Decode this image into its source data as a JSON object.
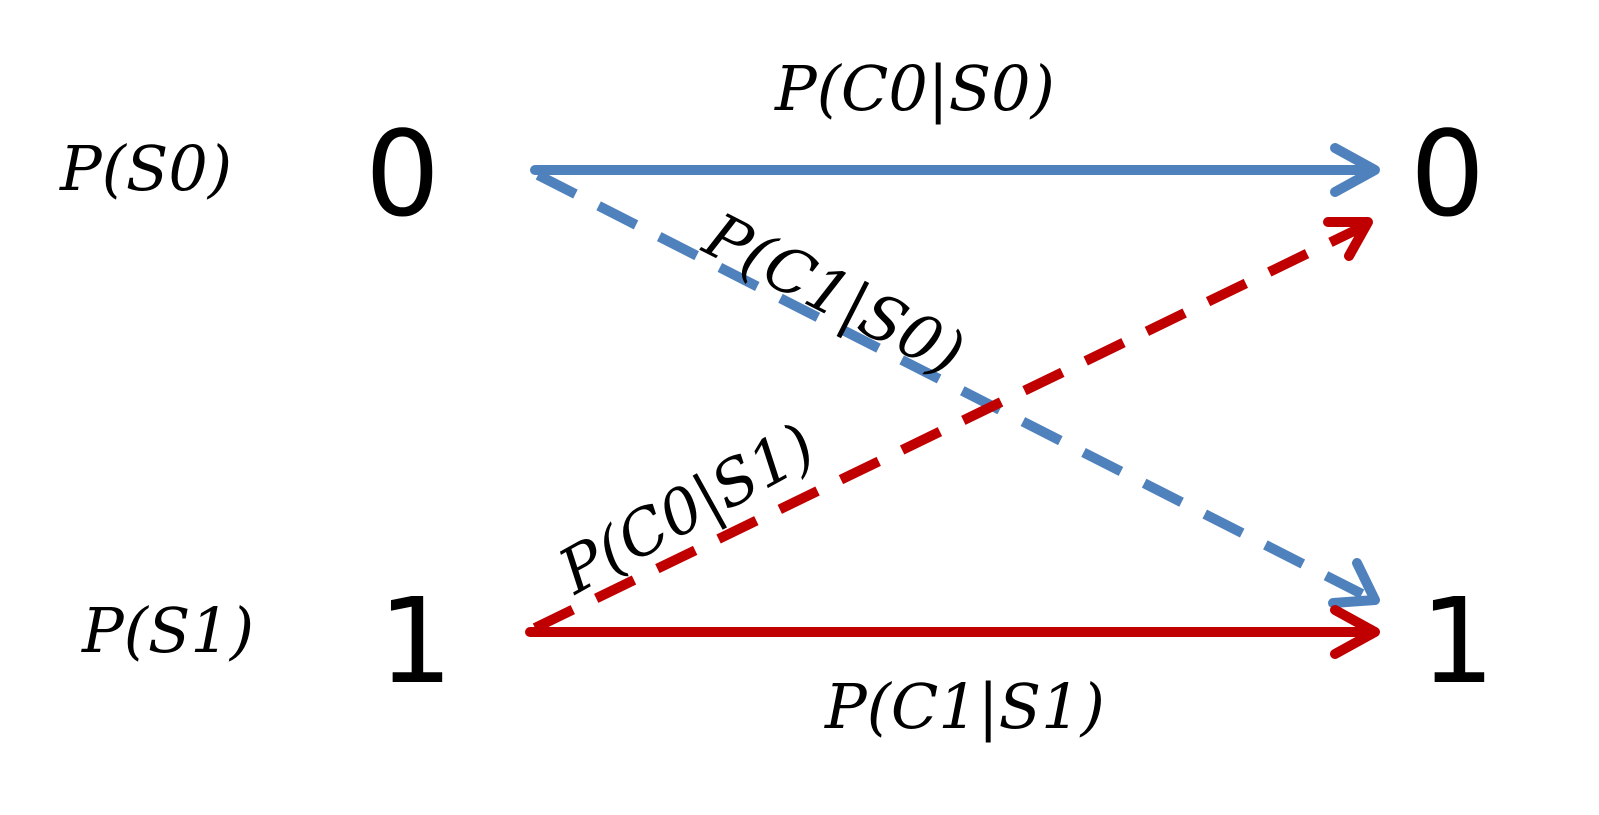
{
  "diagram": {
    "source_nodes": [
      {
        "symbol": "0",
        "prior": "P(S0)"
      },
      {
        "symbol": "1",
        "prior": "P(S1)"
      }
    ],
    "target_nodes": [
      {
        "symbol": "0"
      },
      {
        "symbol": "1"
      }
    ],
    "edges": [
      {
        "from": "0",
        "to": "0",
        "label": "P(C0|S0)",
        "style": "solid",
        "color": "#4f81bd"
      },
      {
        "from": "0",
        "to": "1",
        "label": "P(C1|S0)",
        "style": "dashed",
        "color": "#4f81bd"
      },
      {
        "from": "1",
        "to": "0",
        "label": "P(C0|S1)",
        "style": "dashed",
        "color": "#c00000"
      },
      {
        "from": "1",
        "to": "1",
        "label": "P(C1|S1)",
        "style": "solid",
        "color": "#c00000"
      }
    ]
  }
}
